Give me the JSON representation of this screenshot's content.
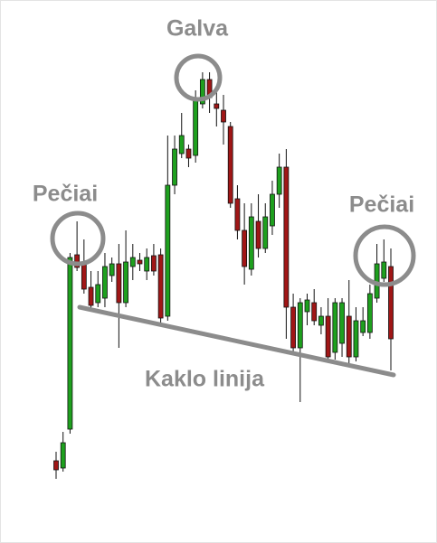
{
  "chart_data": {
    "type": "candlestick",
    "annotations": [
      "Galva",
      "Pečiai",
      "Pečiai",
      "Kaklo linija"
    ],
    "up_color": "#1ea01e",
    "down_color": "#a01616",
    "open": [
      90,
      82,
      125,
      318,
      310,
      282,
      265,
      270,
      295,
      308,
      265,
      305,
      312,
      300,
      317,
      318,
      250,
      395,
      430,
      435,
      428,
      485,
      512,
      485,
      478,
      460,
      380,
      345,
      302,
      355,
      325,
      350,
      385,
      415,
      260,
      215,
      255,
      265,
      240,
      250,
      210,
      220,
      250,
      205,
      232,
      232,
      270,
      292,
      305
    ],
    "high": [
      100,
      122,
      320,
      355,
      335,
      300,
      300,
      320,
      315,
      330,
      345,
      330,
      320,
      325,
      330,
      325,
      450,
      450,
      475,
      440,
      500,
      520,
      520,
      505,
      495,
      465,
      395,
      375,
      375,
      385,
      375,
      400,
      430,
      435,
      275,
      270,
      275,
      280,
      260,
      270,
      270,
      270,
      290,
      260,
      260,
      285,
      330,
      335,
      325
    ],
    "low": [
      70,
      78,
      120,
      300,
      275,
      255,
      260,
      260,
      288,
      215,
      260,
      290,
      300,
      290,
      295,
      243,
      245,
      385,
      425,
      415,
      420,
      480,
      475,
      460,
      440,
      370,
      335,
      285,
      295,
      315,
      320,
      340,
      370,
      225,
      210,
      155,
      240,
      240,
      230,
      200,
      202,
      205,
      195,
      200,
      228,
      225,
      265,
      288,
      190
    ],
    "close": [
      80,
      110,
      315,
      304,
      280,
      262,
      285,
      305,
      308,
      265,
      310,
      315,
      308,
      315,
      300,
      248,
      395,
      435,
      450,
      425,
      490,
      512,
      492,
      480,
      465,
      375,
      345,
      305,
      360,
      325,
      360,
      385,
      415,
      260,
      215,
      265,
      268,
      245,
      250,
      205,
      265,
      265,
      205,
      245,
      245,
      275,
      308,
      310,
      225
    ]
  }
}
